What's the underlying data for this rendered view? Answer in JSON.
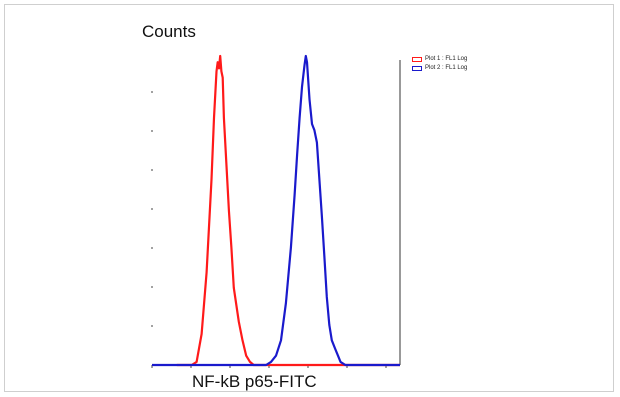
{
  "chart_data": {
    "type": "line",
    "ylabel": "Counts",
    "xlabel": "NF-kB p65-FITC",
    "xlim": [
      0,
      100
    ],
    "ylim": [
      0,
      100
    ],
    "grid": false,
    "legend_position": "top-right",
    "series": [
      {
        "name": "Plot 1 : FL1 Log",
        "color": "#ff1a1a",
        "points": [
          [
            10,
            0
          ],
          [
            16,
            0
          ],
          [
            18,
            1
          ],
          [
            20,
            10
          ],
          [
            22,
            30
          ],
          [
            24,
            60
          ],
          [
            25,
            80
          ],
          [
            26,
            95
          ],
          [
            26.5,
            98
          ],
          [
            27,
            96
          ],
          [
            27.5,
            100
          ],
          [
            28,
            95
          ],
          [
            28.5,
            93
          ],
          [
            29,
            80
          ],
          [
            30,
            65
          ],
          [
            31,
            50
          ],
          [
            32,
            38
          ],
          [
            33,
            25
          ],
          [
            35,
            14
          ],
          [
            36.5,
            8
          ],
          [
            38,
            3
          ],
          [
            39.5,
            1
          ],
          [
            41,
            0
          ],
          [
            50,
            0
          ],
          [
            60,
            0
          ],
          [
            70,
            0
          ],
          [
            80,
            0
          ],
          [
            100,
            0
          ]
        ]
      },
      {
        "name": "Plot 2 : FL1 Log",
        "color": "#1a1acc",
        "points": [
          [
            0,
            0
          ],
          [
            40,
            0
          ],
          [
            46,
            0
          ],
          [
            48,
            1
          ],
          [
            50,
            3
          ],
          [
            52,
            8
          ],
          [
            54,
            20
          ],
          [
            56,
            38
          ],
          [
            57.5,
            55
          ],
          [
            58.5,
            68
          ],
          [
            59.5,
            80
          ],
          [
            60.5,
            90
          ],
          [
            61.5,
            97
          ],
          [
            62,
            100
          ],
          [
            62.5,
            98
          ],
          [
            63.5,
            86
          ],
          [
            64.5,
            78
          ],
          [
            65.5,
            76
          ],
          [
            66.5,
            72
          ],
          [
            67.5,
            60
          ],
          [
            68.5,
            48
          ],
          [
            69.5,
            35
          ],
          [
            70.5,
            22
          ],
          [
            71.5,
            13
          ],
          [
            72.5,
            8
          ],
          [
            74,
            5
          ],
          [
            75,
            3
          ],
          [
            76,
            1
          ],
          [
            78,
            0
          ],
          [
            100,
            0
          ]
        ]
      }
    ]
  }
}
